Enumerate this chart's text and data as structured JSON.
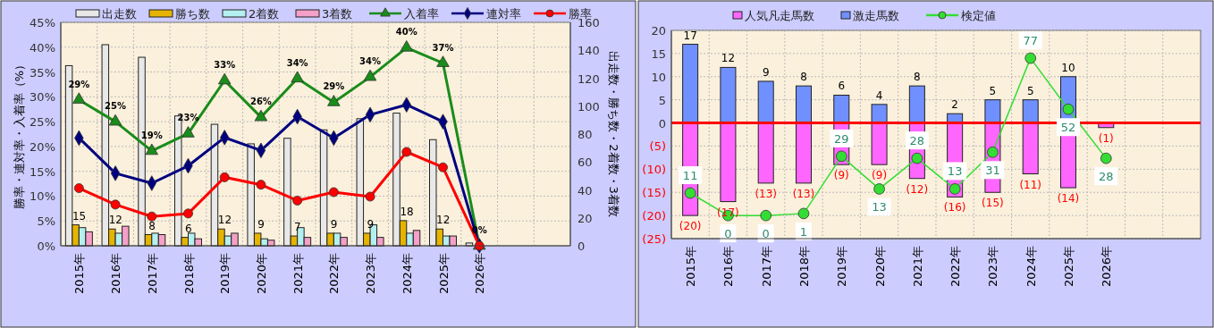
{
  "chart_data": [
    {
      "type": "bar",
      "categories": [
        "2015年",
        "2016年",
        "2017年",
        "2018年",
        "2019年",
        "2020年",
        "2021年",
        "2022年",
        "2023年",
        "2024年",
        "2025年",
        "2026年",
        null,
        null
      ],
      "ylabel": "勝率・連対率・入着率（%）",
      "y2label": "出走数・勝ち数・2着数・3着数",
      "ylim": [
        0,
        45
      ],
      "yticks": [
        {
          "value": 0,
          "label": "0%"
        },
        {
          "value": 5,
          "label": "5%"
        },
        {
          "value": 10,
          "label": "10%"
        },
        {
          "value": 15,
          "label": "15%"
        },
        {
          "value": 20,
          "label": "20%"
        },
        {
          "value": 25,
          "label": "25%"
        },
        {
          "value": 30,
          "label": "30%"
        },
        {
          "value": 35,
          "label": "35%"
        },
        {
          "value": 40,
          "label": "40%"
        },
        {
          "value": 45,
          "label": "45%"
        }
      ],
      "y2lim": [
        0,
        160
      ],
      "y2ticks": [
        0,
        20,
        40,
        60,
        80,
        100,
        120,
        140,
        160
      ],
      "grid": true,
      "legend": "top",
      "series": [
        {
          "name": "出走数",
          "type": "bar",
          "axis": "y2",
          "color": "#e8e8e8",
          "values": [
            129,
            144,
            135,
            93,
            87,
            73,
            77,
            83,
            91,
            95,
            76,
            2,
            null,
            null
          ]
        },
        {
          "name": "勝ち数",
          "type": "bar",
          "axis": "y2",
          "color": "#e6b400",
          "values": [
            15,
            12,
            8,
            6,
            12,
            9,
            7,
            9,
            9,
            18,
            12,
            0,
            null,
            null
          ],
          "value_labels": [
            "15",
            "12",
            "8",
            "6",
            "12",
            "9",
            "7",
            "9",
            "9",
            "18",
            "12",
            null,
            null,
            null
          ]
        },
        {
          "name": "2着数",
          "type": "bar",
          "axis": "y2",
          "color": "#b4f0f0",
          "values": [
            13,
            9,
            9,
            9,
            7,
            5,
            13,
            9,
            15,
            9,
            7,
            0,
            null,
            null
          ]
        },
        {
          "name": "3着数",
          "type": "bar",
          "axis": "y2",
          "color": "#f4a0c8",
          "values": [
            10,
            14,
            8,
            5,
            9,
            4,
            6,
            6,
            6,
            11,
            7,
            0,
            null,
            null
          ]
        },
        {
          "name": "入着率",
          "type": "line",
          "color": "#1a8c1a",
          "marker": "triangle",
          "values": [
            29.4,
            25.0,
            19.1,
            22.6,
            33.3,
            25.9,
            33.7,
            28.9,
            34.0,
            39.9,
            36.8,
            0,
            null,
            null
          ],
          "value_labels": [
            "29%",
            "25%",
            "19%",
            "23%",
            "33%",
            "26%",
            "34%",
            "29%",
            "34%",
            "40%",
            "37%",
            "0%",
            null,
            null
          ]
        },
        {
          "name": "連対率",
          "type": "line",
          "color": "#000080",
          "marker": "diamond",
          "values": [
            21.7,
            14.6,
            12.6,
            16.1,
            21.8,
            19.2,
            26.0,
            21.7,
            26.4,
            28.4,
            25.0,
            0,
            null,
            null
          ]
        },
        {
          "name": "勝率",
          "type": "line",
          "color": "#ff0000",
          "marker": "circle",
          "values": [
            11.6,
            8.3,
            5.9,
            6.5,
            13.8,
            12.3,
            9.1,
            10.8,
            9.9,
            18.9,
            15.8,
            0,
            null,
            null
          ]
        }
      ]
    },
    {
      "type": "bar",
      "stacked": true,
      "categories": [
        "2015年",
        "2016年",
        "2017年",
        "2018年",
        "2019年",
        "2020年",
        "2021年",
        "2022年",
        "2023年",
        "2024年",
        "2025年",
        "2026年",
        null,
        null
      ],
      "ylim": [
        -25,
        20
      ],
      "yticks": [
        {
          "value": -25,
          "label": "(25)"
        },
        {
          "value": -20,
          "label": "(20)"
        },
        {
          "value": -15,
          "label": "(15)"
        },
        {
          "value": -10,
          "label": "(10)"
        },
        {
          "value": -5,
          "label": "(5)"
        },
        0,
        5,
        10,
        15,
        20
      ],
      "y2lim": [
        -11.3,
        90.6
      ],
      "grid": true,
      "legend": "top",
      "ref_lines": [
        {
          "axis": "y",
          "value": 0,
          "color": "#ff0000"
        }
      ],
      "series": [
        {
          "name": "人気凡走馬数",
          "type": "bar",
          "color": "#ff66ff",
          "values": [
            -20,
            -17,
            -13,
            -13,
            -9,
            -9,
            -12,
            -16,
            -15,
            -11,
            -14,
            -1,
            null,
            null
          ],
          "value_labels": [
            "(20)",
            "(17)",
            "(13)",
            "(13)",
            "(9)",
            "(9)",
            "(12)",
            "(16)",
            "(15)",
            "(11)",
            "(14)",
            "(1)",
            null,
            null
          ]
        },
        {
          "name": "激走馬数",
          "type": "bar",
          "color": "#7090ff",
          "values": [
            17,
            12,
            9,
            8,
            6,
            4,
            8,
            2,
            5,
            5,
            10,
            null,
            null,
            null
          ],
          "value_labels": [
            "17",
            "12",
            "9",
            "8",
            "6",
            "4",
            "8",
            "2",
            "5",
            "5",
            "10",
            null,
            null,
            null
          ]
        },
        {
          "name": "検定値",
          "type": "line",
          "axis": "y2",
          "color": "#33dd33",
          "marker": "circle",
          "values": [
            11,
            0,
            0,
            1,
            29,
            13,
            28,
            13,
            31,
            77,
            52,
            28,
            null,
            null
          ],
          "value_labels": [
            "11",
            "0",
            "0",
            "1",
            "29",
            "13",
            "28",
            "13",
            "31",
            "77",
            "52",
            "28",
            null,
            null
          ]
        }
      ]
    }
  ]
}
